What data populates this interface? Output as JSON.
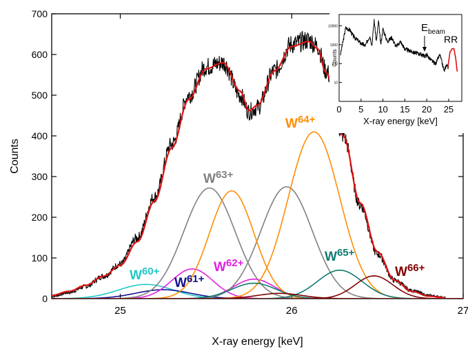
{
  "chart_data": [
    {
      "type": "line",
      "title": "",
      "xlabel": "X-ray energy [keV]",
      "ylabel": "Counts",
      "xlim": [
        24.6,
        27.0
      ],
      "ylim": [
        0,
        700
      ],
      "x_ticks": [
        25,
        26,
        27
      ],
      "x_tick_labels": [
        "25",
        "26",
        "27"
      ],
      "y_ticks": [
        0,
        100,
        200,
        300,
        400,
        500,
        600,
        700
      ],
      "y_tick_labels": [
        "0",
        "100",
        "200",
        "300",
        "400",
        "500",
        "600",
        "700"
      ],
      "grid": false,
      "legend": "none",
      "data_series": {
        "name": "",
        "color": "#000000",
        "x": [
          24.6,
          24.7,
          24.8,
          24.9,
          25.0,
          25.1,
          25.2,
          25.3,
          25.4,
          25.5,
          25.6,
          25.7,
          25.75,
          25.8,
          25.9,
          26.0,
          26.1,
          26.15,
          26.2,
          26.3,
          26.4,
          26.5,
          26.6,
          26.7,
          26.8,
          26.9
        ],
        "y": [
          5,
          15,
          30,
          55,
          85,
          150,
          250,
          380,
          500,
          570,
          580,
          500,
          460,
          470,
          560,
          625,
          635,
          620,
          560,
          400,
          230,
          110,
          45,
          20,
          8,
          3
        ]
      },
      "fit_series": {
        "name": "",
        "color": "#dd1010",
        "x": [
          24.6,
          24.7,
          24.8,
          24.9,
          25.0,
          25.1,
          25.2,
          25.3,
          25.4,
          25.5,
          25.6,
          25.7,
          25.75,
          25.8,
          25.9,
          26.0,
          26.1,
          26.15,
          26.2,
          26.3,
          26.4,
          26.5,
          26.6,
          26.7,
          26.8,
          26.9
        ],
        "y": [
          8,
          18,
          33,
          55,
          82,
          140,
          240,
          370,
          490,
          565,
          580,
          510,
          462,
          475,
          560,
          620,
          632,
          615,
          555,
          400,
          235,
          115,
          45,
          18,
          6,
          2
        ]
      },
      "components": [
        {
          "label": "W",
          "charge": "60+",
          "color": "#20c8c8",
          "center": 25.15,
          "amplitude": 35,
          "width": 0.16
        },
        {
          "label": "W",
          "charge": "61+",
          "color": "#101090",
          "center": 25.25,
          "amplitude": 22,
          "width": 0.16
        },
        {
          "label": "W",
          "charge": "62+",
          "color": "#e020e0",
          "center": 25.42,
          "amplitude": 73,
          "width": 0.12
        },
        {
          "label": "W",
          "charge": "62+",
          "color": "#e020e0",
          "center": 25.78,
          "amplitude": 48,
          "width": 0.12
        },
        {
          "label": "W",
          "charge": "63+",
          "color": "#808080",
          "center": 25.52,
          "amplitude": 272,
          "width": 0.15
        },
        {
          "label": "W",
          "charge": "63+",
          "color": "#808080",
          "center": 25.97,
          "amplitude": 275,
          "width": 0.15
        },
        {
          "label": "W",
          "charge": "64+",
          "color": "#ff8c00",
          "center": 25.65,
          "amplitude": 265,
          "width": 0.13
        },
        {
          "label": "W",
          "charge": "64+",
          "color": "#ff8c00",
          "center": 26.13,
          "amplitude": 410,
          "width": 0.15
        },
        {
          "label": "W",
          "charge": "65+",
          "color": "#107a70",
          "center": 25.78,
          "amplitude": 38,
          "width": 0.13
        },
        {
          "label": "W",
          "charge": "65+",
          "color": "#107a70",
          "center": 26.28,
          "amplitude": 70,
          "width": 0.13
        },
        {
          "label": "W",
          "charge": "66+",
          "color": "#800000",
          "center": 25.93,
          "amplitude": 13,
          "width": 0.13
        },
        {
          "label": "W",
          "charge": "66+",
          "color": "#800000",
          "center": 26.48,
          "amplitude": 56,
          "width": 0.11
        }
      ],
      "annotations": [
        {
          "base": "W",
          "sup": "63+",
          "color": "#808080"
        },
        {
          "base": "W",
          "sup": "64+",
          "color": "#ff8c00"
        },
        {
          "base": "W",
          "sup": "62+",
          "color": "#e020e0"
        },
        {
          "base": "W",
          "sup": "60+",
          "color": "#20c8c8"
        },
        {
          "base": "W",
          "sup": "61+",
          "color": "#101090"
        },
        {
          "base": "W",
          "sup": "65+",
          "color": "#107a70"
        },
        {
          "base": "W",
          "sup": "66+",
          "color": "#800000"
        }
      ]
    },
    {
      "type": "line",
      "title": "",
      "xlabel": "X-ray energy [keV]",
      "ylabel": "Counts",
      "xlim": [
        0,
        28
      ],
      "ylim_log": [
        1,
        40000
      ],
      "y_scale": "log",
      "x_ticks": [
        0,
        5,
        10,
        15,
        20,
        25
      ],
      "x_tick_labels": [
        "0",
        "5",
        "10",
        "15",
        "20",
        "25"
      ],
      "y_ticks": [
        10,
        100,
        1000,
        10000
      ],
      "y_tick_labels": [
        "10",
        "100",
        "1000",
        "10000"
      ],
      "spectrum": {
        "color": "#000000",
        "x": [
          0.3,
          1.5,
          2.5,
          3.2,
          4,
          5,
          6,
          7,
          7.5,
          8,
          8.5,
          9,
          9.5,
          10,
          11,
          12,
          13,
          14,
          15,
          16,
          17,
          18,
          19,
          19.5,
          20,
          21,
          22,
          23,
          24,
          24.5,
          25
        ],
        "y": [
          300,
          8000,
          6000,
          3000,
          2000,
          1200,
          900,
          3000,
          1000,
          20000,
          1500,
          18000,
          1000,
          7000,
          1500,
          2500,
          800,
          1500,
          600,
          500,
          400,
          350,
          300,
          250,
          300,
          150,
          100,
          300,
          40,
          90,
          60
        ]
      },
      "rr_spectrum": {
        "color": "#dd1010",
        "x": [
          24.8,
          25.3,
          25.8,
          26.2,
          26.6,
          27.0
        ],
        "y": [
          60,
          400,
          620,
          620,
          200,
          30
        ]
      },
      "annotations": [
        {
          "base": "E",
          "sub": "beam",
          "x": 19.5
        },
        {
          "text": "RR"
        }
      ]
    }
  ]
}
